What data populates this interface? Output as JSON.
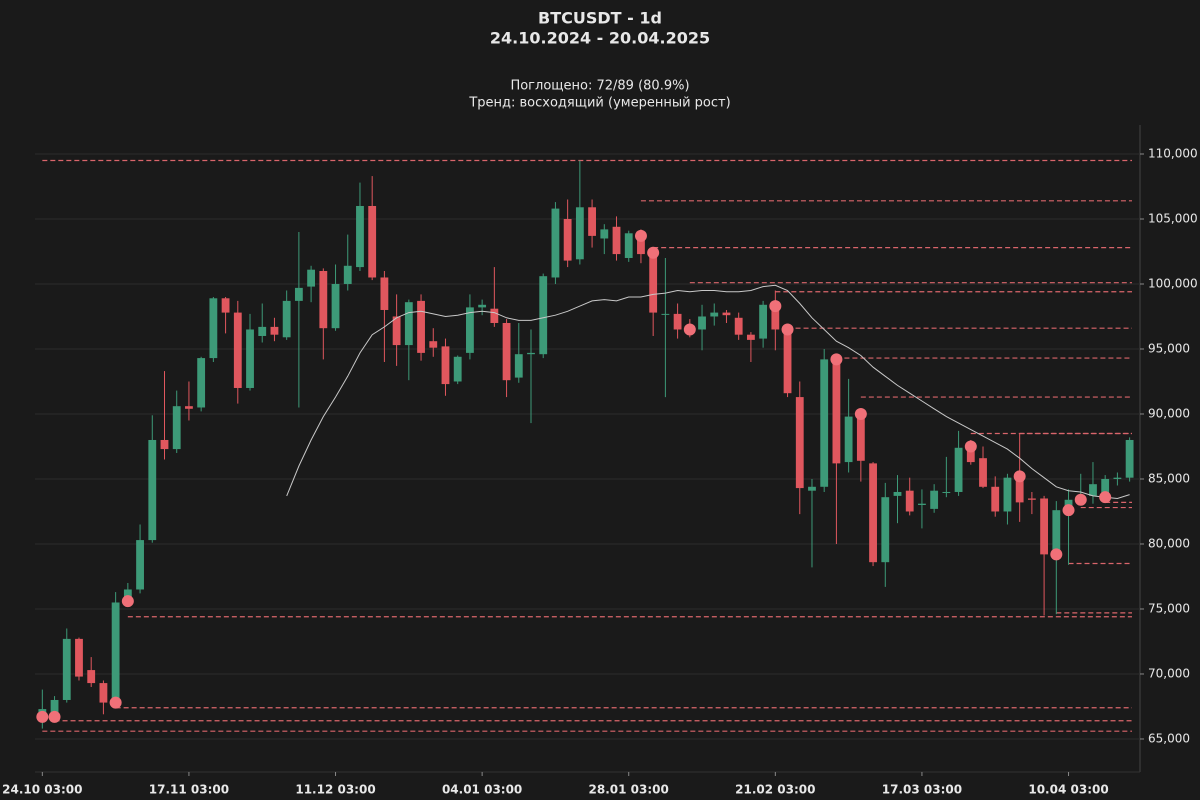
{
  "chart_data": {
    "type": "candlestick",
    "title": "BTCUSDT - 1d",
    "subtitle": "24.10.2024 - 20.04.2025",
    "annotations": [
      "Поглощено: 72/89 (80.9%)",
      "Тренд: восходящий (умеренный рост)"
    ],
    "up_color": "#3d9a78",
    "down_color": "#e0575e",
    "marker_color": "#f07078",
    "level_color": "#d9656b",
    "ma_color": "#c8c8c8",
    "grid": true,
    "xlim": [
      -0.6,
      89.85
    ],
    "ylim": [
      62460,
      112230
    ],
    "xticks": [
      {
        "value": 0,
        "label": "24.10 03:00"
      },
      {
        "value": 12,
        "label": "17.11 03:00"
      },
      {
        "value": 24,
        "label": "11.12 03:00"
      },
      {
        "value": 36,
        "label": "04.01 03:00"
      },
      {
        "value": 48,
        "label": "28.01 03:00"
      },
      {
        "value": 60,
        "label": "21.02 03:00"
      },
      {
        "value": 72,
        "label": "17.03 03:00"
      },
      {
        "value": 84,
        "label": "10.04 03:00"
      }
    ],
    "yticks": [
      {
        "value": 65000,
        "label": "65,000"
      },
      {
        "value": 70000,
        "label": "70,000"
      },
      {
        "value": 75000,
        "label": "75,000"
      },
      {
        "value": 80000,
        "label": "80,000"
      },
      {
        "value": 85000,
        "label": "85,000"
      },
      {
        "value": 90000,
        "label": "90,000"
      },
      {
        "value": 95000,
        "label": "95,000"
      },
      {
        "value": 100000,
        "label": "100,000"
      },
      {
        "value": 105000,
        "label": "105,000"
      },
      {
        "value": 110000,
        "label": "110,000"
      }
    ],
    "open": [
      66900,
      67000,
      68000,
      72700,
      70300,
      69300,
      67800,
      75500,
      76500,
      80300,
      88000,
      87300,
      90600,
      90500,
      94300,
      98900,
      97800,
      92000,
      96000,
      96700,
      95900,
      98700,
      99800,
      101000,
      96600,
      100000,
      101300,
      106000,
      100500,
      97500,
      95300,
      98700,
      95600,
      95200,
      92500,
      94700,
      98200,
      98100,
      97000,
      92800,
      94600,
      94600,
      100500,
      105000,
      101900,
      105900,
      103500,
      104400,
      102000,
      103700,
      102400,
      97700,
      97700,
      96600,
      96500,
      97500,
      97800,
      97400,
      96100,
      95800,
      98300,
      96500,
      91300,
      84100,
      84400,
      94200,
      86300,
      90000,
      86200,
      78600,
      83700,
      84100,
      83000,
      82700,
      84000,
      84000,
      87300,
      86600,
      84400,
      82500,
      85100,
      83500,
      83500,
      79200,
      82600,
      83500,
      83700,
      83600,
      85000,
      85100
    ],
    "high": [
      68800,
      68300,
      73500,
      72800,
      71300,
      69500,
      76300,
      77000,
      81500,
      89900,
      93300,
      91800,
      92500,
      94400,
      99000,
      99000,
      98700,
      97700,
      98500,
      97400,
      99500,
      104000,
      101400,
      101200,
      101500,
      103800,
      107800,
      108300,
      101000,
      99200,
      98800,
      99200,
      96600,
      95800,
      94500,
      99200,
      98800,
      101300,
      97300,
      97000,
      96500,
      100800,
      106300,
      106500,
      109500,
      106500,
      104600,
      105200,
      104100,
      104200,
      102600,
      102000,
      98500,
      97300,
      98400,
      98500,
      98000,
      97800,
      96300,
      98700,
      99500,
      96700,
      92500,
      85000,
      95000,
      94400,
      92700,
      90400,
      86300,
      84700,
      85300,
      85100,
      84200,
      84600,
      86700,
      88700,
      88000,
      87500,
      85200,
      85400,
      88500,
      84000,
      83700,
      83300,
      84200,
      85400,
      86300,
      85300,
      85500,
      88200
    ],
    "low": [
      65800,
      66300,
      67800,
      69500,
      69000,
      66900,
      67500,
      75400,
      76200,
      80100,
      86500,
      87000,
      89500,
      90200,
      94000,
      96200,
      90800,
      91800,
      95500,
      95600,
      95700,
      90500,
      98600,
      94200,
      96400,
      99500,
      101000,
      100300,
      94000,
      93700,
      92600,
      94100,
      94400,
      91400,
      92300,
      94200,
      97600,
      96700,
      91300,
      92400,
      89300,
      94300,
      100000,
      101300,
      101500,
      102800,
      102300,
      101800,
      101700,
      101600,
      96000,
      91300,
      95800,
      95900,
      94900,
      96800,
      97000,
      95700,
      94000,
      95100,
      94900,
      91300,
      82300,
      78200,
      84000,
      80000,
      85500,
      84800,
      78300,
      76700,
      81600,
      82200,
      81200,
      82400,
      83600,
      83700,
      86100,
      84300,
      82100,
      81500,
      81700,
      82300,
      74500,
      74600,
      78400,
      83000,
      83100,
      83500,
      84500,
      84800
    ],
    "close": [
      67300,
      68000,
      72700,
      69800,
      69300,
      67800,
      75500,
      76500,
      80300,
      88000,
      87300,
      90600,
      90400,
      94300,
      98900,
      97800,
      92000,
      96500,
      96700,
      96100,
      98700,
      99700,
      101100,
      96600,
      100000,
      101400,
      106000,
      100500,
      98000,
      95300,
      98600,
      94700,
      95100,
      92300,
      94400,
      98200,
      98400,
      97000,
      92600,
      94600,
      94700,
      100600,
      105800,
      101800,
      105900,
      103700,
      104200,
      102300,
      103900,
      102300,
      97800,
      97700,
      96500,
      96400,
      97500,
      97800,
      97600,
      96100,
      95700,
      98400,
      96500,
      91600,
      84300,
      84400,
      94200,
      86200,
      89800,
      86400,
      78600,
      83600,
      84000,
      82500,
      83100,
      84100,
      84000,
      87400,
      86300,
      84400,
      82500,
      85100,
      83200,
      83400,
      79200,
      82600,
      83400,
      83700,
      84600,
      85000,
      85100,
      88000
    ],
    "moving_average": [
      null,
      null,
      null,
      null,
      null,
      null,
      null,
      null,
      null,
      null,
      null,
      null,
      null,
      null,
      null,
      null,
      null,
      null,
      null,
      null,
      83700,
      86000,
      88000,
      89800,
      91300,
      92900,
      94700,
      96100,
      96700,
      97400,
      97800,
      97900,
      97700,
      97500,
      97600,
      97800,
      97900,
      97800,
      97400,
      97200,
      97200,
      97400,
      97600,
      97900,
      98300,
      98700,
      98800,
      98700,
      99000,
      99000,
      99200,
      99300,
      99500,
      99400,
      99500,
      99500,
      99400,
      99400,
      99500,
      99800,
      99900,
      99500,
      98500,
      97400,
      96500,
      95600,
      95100,
      94500,
      93600,
      92900,
      92200,
      91600,
      91000,
      90400,
      89800,
      89300,
      88800,
      88300,
      87800,
      87300,
      86600,
      85800,
      85100,
      84400,
      84100,
      84000,
      83700,
      83600,
      83500,
      83800
    ],
    "markers": {
      "x": [
        0,
        1,
        6,
        7,
        49,
        50,
        53,
        60,
        61,
        65,
        67,
        76,
        80,
        83,
        84,
        85,
        87
      ],
      "values": [
        66700,
        66700,
        67800,
        75600,
        103700,
        102400,
        96500,
        98300,
        96500,
        94200,
        90000,
        87500,
        85200,
        79200,
        82600,
        83400,
        83600
      ]
    },
    "levels": {
      "start": [
        0,
        49,
        50,
        53,
        60,
        61,
        65,
        67,
        76,
        80,
        85,
        87,
        84,
        83,
        7,
        6,
        1,
        0
      ],
      "values": [
        109500,
        106400,
        102800,
        100100,
        99400,
        96600,
        94300,
        91300,
        88500,
        88500,
        82800,
        83200,
        78500,
        74700,
        74400,
        67400,
        66400,
        65600
      ]
    }
  }
}
